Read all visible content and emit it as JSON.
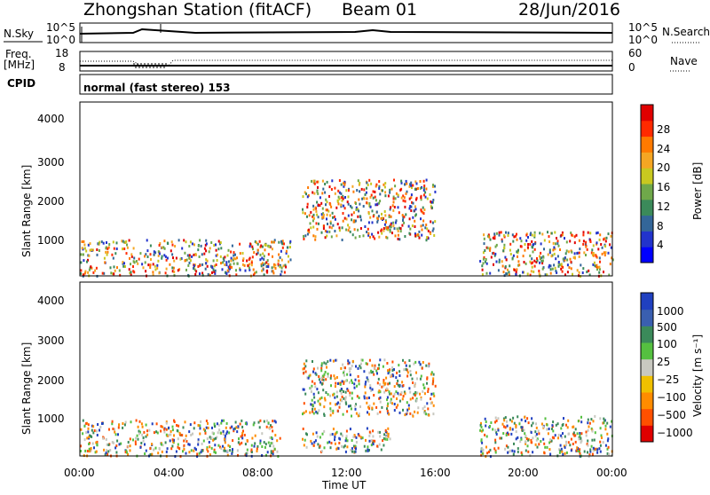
{
  "header": {
    "station": "Zhongshan Station (fitACF)",
    "beam": "Beam 01",
    "date": "28/Jun/2016"
  },
  "strip": {
    "nsky_label": "N.Sky",
    "nsky_ticks": [
      "10^5",
      "10^0"
    ],
    "nsearch_label": "N.Search",
    "nsearch_ticks": [
      "10^5",
      "10^0"
    ],
    "freq_label": "Freq.",
    "freq_unit": "[MHz]",
    "freq_ticks": [
      "18",
      "8"
    ],
    "nave_label": "Nave",
    "nave_ticks": [
      "60",
      "0"
    ],
    "cpid_label": "CPID",
    "cpid_text": "normal (fast stereo) 153"
  },
  "axis": {
    "xlabel": "Time UT",
    "xticks": [
      "00:00",
      "04:00",
      "08:00",
      "12:00",
      "16:00",
      "20:00",
      "00:00"
    ],
    "ylabel": "Slant Range [km]",
    "yticks": [
      "4000",
      "3000",
      "2000",
      "1000"
    ]
  },
  "power_scale": {
    "label": "Power [dB]",
    "ticks": [
      "28",
      "24",
      "20",
      "16",
      "12",
      "8",
      "4"
    ],
    "colors": [
      "#0000ff",
      "#2233cc",
      "#336699",
      "#3b8a5a",
      "#6fa84a",
      "#c8c820",
      "#f5a623",
      "#ff7a00",
      "#ff2a00",
      "#e00000"
    ]
  },
  "velocity_scale": {
    "label": "Velocity [m s⁻¹]",
    "ticks": [
      "1000",
      "500",
      "100",
      "25",
      "−25",
      "−100",
      "−500",
      "−1000"
    ],
    "colors": [
      "#2040c0",
      "#3a5fb0",
      "#3b8a5a",
      "#55c040",
      "#c8c8c0",
      "#f0c000",
      "#ff8c00",
      "#ff5000",
      "#e00000"
    ]
  },
  "chart_data": [
    {
      "type": "heatmap",
      "title": "Power",
      "x": "time UT 00:00–24:00",
      "xlabel": "Time UT",
      "ylabel": "Slant Range [km]",
      "ylim": [
        180,
        4500
      ],
      "colorbar": {
        "label": "Power [dB]",
        "range": [
          0,
          30
        ]
      },
      "features": [
        {
          "time": [
            0.0,
            9.5
          ],
          "range": [
            200,
            1100
          ],
          "level": "high near 5:00–7:00"
        },
        {
          "time": [
            10.0,
            16.0
          ],
          "range": [
            1100,
            2600
          ],
          "level": "medium"
        },
        {
          "time": [
            18.0,
            24.0
          ],
          "range": [
            200,
            1300
          ],
          "level": "medium"
        }
      ]
    },
    {
      "type": "heatmap",
      "title": "Velocity",
      "x": "time UT 00:00–24:00",
      "xlabel": "Time UT",
      "ylabel": "Slant Range [km]",
      "ylim": [
        180,
        4500
      ],
      "colorbar": {
        "label": "Velocity [m s⁻¹]",
        "range": [
          -1000,
          1000
        ]
      },
      "features": [
        {
          "time": [
            0.0,
            9.0
          ],
          "range": [
            200,
            1100
          ],
          "velocity": "negative (orange)"
        },
        {
          "time": [
            10.0,
            16.0
          ],
          "range": [
            1200,
            2600
          ],
          "velocity": "near zero (gray)"
        },
        {
          "time": [
            10.0,
            14.0
          ],
          "range": [
            300,
            900
          ],
          "velocity": "positive (green)"
        },
        {
          "time": [
            18.0,
            24.0
          ],
          "range": [
            200,
            1200
          ],
          "velocity": "mixed"
        }
      ]
    }
  ]
}
